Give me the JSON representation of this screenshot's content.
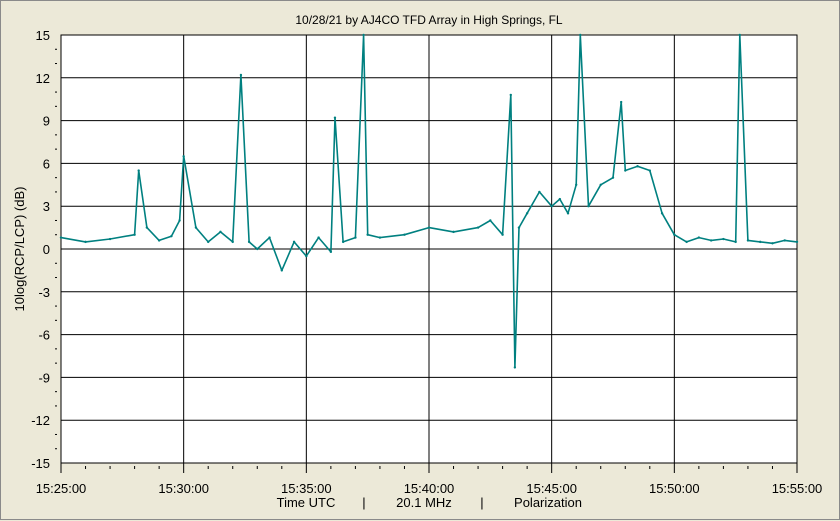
{
  "chart_data": {
    "type": "line",
    "title": "10/28/21  by  AJ4CO TFD Array  in  High Springs, FL",
    "ylabel": "10log(RCP/LCP)  (dB)",
    "xlabel_parts": [
      "Time UTC",
      "|",
      "20.1 MHz",
      "|",
      "Polarization"
    ],
    "ylim": [
      -15,
      15
    ],
    "yticks": [
      15,
      12,
      9,
      6,
      3,
      0,
      -3,
      -6,
      -9,
      -12,
      -15
    ],
    "xlim": [
      "15:25:00",
      "15:55:00"
    ],
    "xticks": [
      "15:25:00",
      "15:30:00",
      "15:35:00",
      "15:40:00",
      "15:45:00",
      "15:50:00",
      "15:55:00"
    ],
    "grid": true,
    "colors": {
      "series": "#008080",
      "plot_bg": "#ffffff",
      "grid": "#000000"
    },
    "series": [
      {
        "x": [
          "15:25:00",
          "15:26:00",
          "15:27:00",
          "15:28:00",
          "15:28:10",
          "15:28:30",
          "15:29:00",
          "15:29:30",
          "15:29:50",
          "15:30:00",
          "15:30:30",
          "15:31:00",
          "15:31:30",
          "15:32:00",
          "15:32:20",
          "15:32:40",
          "15:33:00",
          "15:33:30",
          "15:34:00",
          "15:34:30",
          "15:35:00",
          "15:35:30",
          "15:36:00",
          "15:36:10",
          "15:36:30",
          "15:37:00",
          "15:37:20",
          "15:37:30",
          "15:38:00",
          "15:39:00",
          "15:40:00",
          "15:41:00",
          "15:42:00",
          "15:42:30",
          "15:43:00",
          "15:43:20",
          "15:43:30",
          "15:43:40",
          "15:44:00",
          "15:44:30",
          "15:45:00",
          "15:45:20",
          "15:45:40",
          "15:46:00",
          "15:46:10",
          "15:46:30",
          "15:47:00",
          "15:47:30",
          "15:47:50",
          "15:48:00",
          "15:48:30",
          "15:49:00",
          "15:49:30",
          "15:50:00",
          "15:50:30",
          "15:51:00",
          "15:51:30",
          "15:52:00",
          "15:52:30",
          "15:52:40",
          "15:53:00",
          "15:53:30",
          "15:54:00",
          "15:54:30",
          "15:55:00"
        ],
        "y": [
          0.8,
          0.5,
          0.7,
          1.0,
          5.5,
          1.5,
          0.6,
          0.9,
          2.0,
          6.5,
          1.5,
          0.5,
          1.2,
          0.5,
          12.2,
          0.5,
          0.0,
          0.8,
          -1.5,
          0.5,
          -0.5,
          0.8,
          -0.2,
          9.2,
          0.5,
          0.8,
          15.0,
          1.0,
          0.8,
          1.0,
          1.5,
          1.2,
          1.5,
          2.0,
          1.0,
          10.8,
          -8.3,
          1.5,
          2.5,
          4.0,
          3.0,
          3.5,
          2.5,
          4.5,
          15.0,
          3.0,
          4.5,
          5.0,
          10.3,
          5.5,
          5.8,
          5.5,
          2.5,
          1.0,
          0.5,
          0.8,
          0.6,
          0.7,
          0.5,
          15.0,
          0.6,
          0.5,
          0.4,
          0.6,
          0.5
        ]
      }
    ]
  }
}
